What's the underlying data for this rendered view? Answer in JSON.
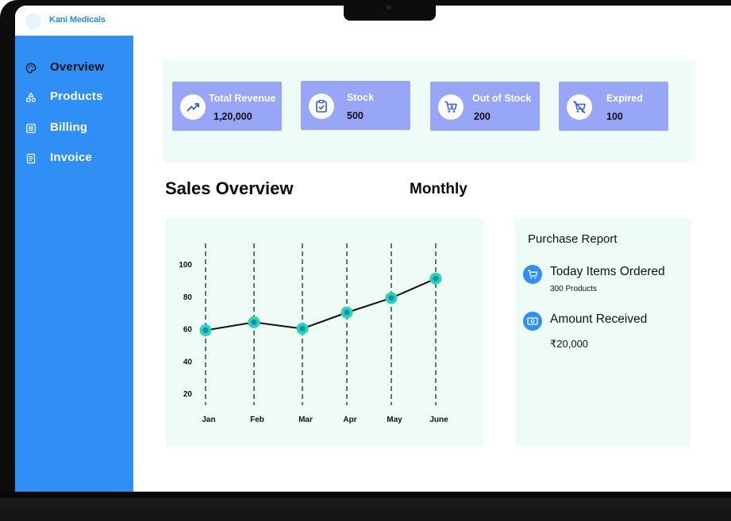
{
  "brand": {
    "name": "Kani Medicals"
  },
  "sidebar": {
    "items": [
      {
        "label": "Overview",
        "icon": "palette-icon",
        "active": true
      },
      {
        "label": "Products",
        "icon": "shapes-icon",
        "active": false
      },
      {
        "label": "Billing",
        "icon": "list-icon",
        "active": false
      },
      {
        "label": "Invoice",
        "icon": "receipt-icon",
        "active": false
      }
    ]
  },
  "stats": [
    {
      "label": "Total Revenue",
      "value": "1,20,000",
      "icon": "trending-up-icon"
    },
    {
      "label": "Stock",
      "value": "500",
      "icon": "clipboard-check-icon"
    },
    {
      "label": "Out of Stock",
      "value": "200",
      "icon": "cart-icon"
    },
    {
      "label": "Expired",
      "value": "100",
      "icon": "no-cart-icon"
    }
  ],
  "sales": {
    "title": "Sales Overview",
    "period": "Monthly"
  },
  "chart_data": {
    "type": "line",
    "categories": [
      "Jan",
      "Feb",
      "Mar",
      "Apr",
      "May",
      "June"
    ],
    "values": [
      59,
      64,
      60,
      70,
      79,
      91
    ],
    "yticks": [
      20,
      40,
      60,
      80,
      100
    ],
    "ylim": [
      12,
      112
    ],
    "grid": "vertical-dashed",
    "colors": {
      "line": "#111111",
      "marker_outer": "#23d9a4",
      "marker_inner": "#1f7fe0"
    }
  },
  "report": {
    "title": "Purchase Report",
    "items": [
      {
        "heading": "Today Items Ordered",
        "sub": "300 Products",
        "icon": "cart-icon"
      },
      {
        "heading": "Amount  Received",
        "sub": "₹20,000",
        "icon": "cash-icon"
      }
    ]
  },
  "colors": {
    "sidebar": "#2f8ff5",
    "card": "#98a6f8",
    "panel": "#eefbf6"
  }
}
